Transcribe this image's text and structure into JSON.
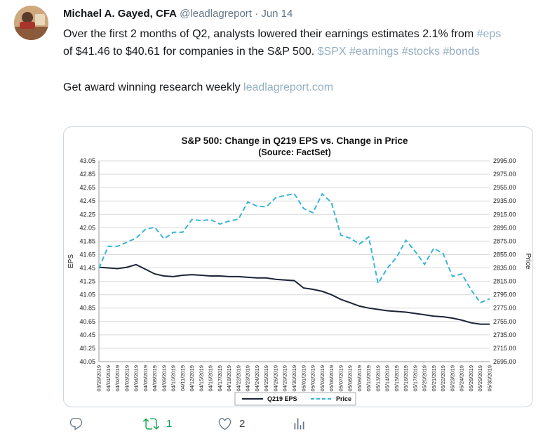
{
  "tweet": {
    "author": "Michael A. Gayed, CFA",
    "handle": "@leadlagreport",
    "separator": "·",
    "date": "Jun 14",
    "body": {
      "part1": "Over the first 2 months of Q2, analysts lowered their earnings estimates 2.1% from ",
      "tag_eps": "#eps",
      "part2": " of $41.46 to $40.61 for companies in the S&P 500. ",
      "tags_trailing": "$SPX #earnings #stocks #bonds"
    },
    "promo": {
      "text": "Get award winning research weekly ",
      "link": "leadlagreport.com"
    },
    "actions": {
      "retweet_count": "1",
      "like_count": "2"
    }
  },
  "icons": {
    "reply": "reply-speech-bubble",
    "retweet": "retweet-arrows",
    "like": "heart-outline",
    "analytics": "vertical-bar-chart"
  },
  "colors": {
    "link": "#94afc2",
    "retweet_green": "#10a54a",
    "icon_gray": "#657786",
    "text": "#14171a",
    "chart_grid": "#d9d9d9"
  },
  "chart_data": {
    "type": "line",
    "title": "S&P 500: Change in Q219 EPS vs. Change in Price",
    "subtitle": "(Source: FactSet)",
    "ylabel_left": "EPS",
    "ylabel_right": "Price",
    "ylim_left": [
      40.05,
      43.05
    ],
    "ylim_right": [
      2695.0,
      2995.0
    ],
    "ytick_step_left": 0.2,
    "ytick_step_right": 20.0,
    "grid": true,
    "legend_position": "bottom",
    "categories": [
      "03/29/2019",
      "04/01/2019",
      "04/02/2019",
      "04/03/2019",
      "04/04/2019",
      "04/05/2019",
      "04/08/2019",
      "04/09/2019",
      "04/10/2019",
      "04/11/2019",
      "04/12/2019",
      "04/15/2019",
      "04/16/2019",
      "04/17/2019",
      "04/18/2019",
      "04/22/2019",
      "04/23/2019",
      "04/24/2019",
      "04/25/2019",
      "04/26/2019",
      "04/29/2019",
      "04/30/2019",
      "05/01/2019",
      "05/02/2019",
      "05/03/2019",
      "05/06/2019",
      "05/07/2019",
      "05/08/2019",
      "05/09/2019",
      "05/10/2019",
      "05/13/2019",
      "05/14/2019",
      "05/15/2019",
      "05/16/2019",
      "05/17/2019",
      "05/20/2019",
      "05/21/2019",
      "05/22/2019",
      "05/23/2019",
      "05/24/2019",
      "05/28/2019",
      "05/29/2019",
      "05/30/2019"
    ],
    "series": [
      {
        "name": "Q219 EPS",
        "axis": "left",
        "style": "solid",
        "dash": "",
        "color": "#1b2437",
        "values": [
          41.46,
          41.45,
          41.44,
          41.46,
          41.5,
          41.43,
          41.36,
          41.33,
          41.32,
          41.34,
          41.35,
          41.34,
          41.33,
          41.33,
          41.32,
          41.32,
          41.31,
          41.3,
          41.3,
          41.28,
          41.27,
          41.26,
          41.15,
          41.13,
          41.1,
          41.05,
          40.98,
          40.93,
          40.88,
          40.85,
          40.83,
          40.81,
          40.8,
          40.79,
          40.77,
          40.75,
          40.73,
          40.72,
          40.7,
          40.67,
          40.63,
          40.61,
          40.61
        ]
      },
      {
        "name": "Price",
        "axis": "right",
        "style": "dashed",
        "dash": "7 4",
        "color": "#3ab5d8",
        "values": [
          2834.4,
          2867.19,
          2867.24,
          2873.4,
          2879.39,
          2892.74,
          2895.77,
          2878.2,
          2888.21,
          2888.32,
          2907.41,
          2905.58,
          2907.06,
          2900.45,
          2905.03,
          2907.97,
          2933.68,
          2927.25,
          2926.17,
          2939.88,
          2943.03,
          2945.83,
          2923.73,
          2917.52,
          2945.64,
          2932.47,
          2884.05,
          2879.42,
          2870.72,
          2881.4,
          2811.87,
          2834.41,
          2850.96,
          2876.32,
          2859.53,
          2840.23,
          2864.36,
          2856.27,
          2822.24,
          2826.06,
          2802.39,
          2783.02,
          2788.86
        ]
      }
    ]
  }
}
